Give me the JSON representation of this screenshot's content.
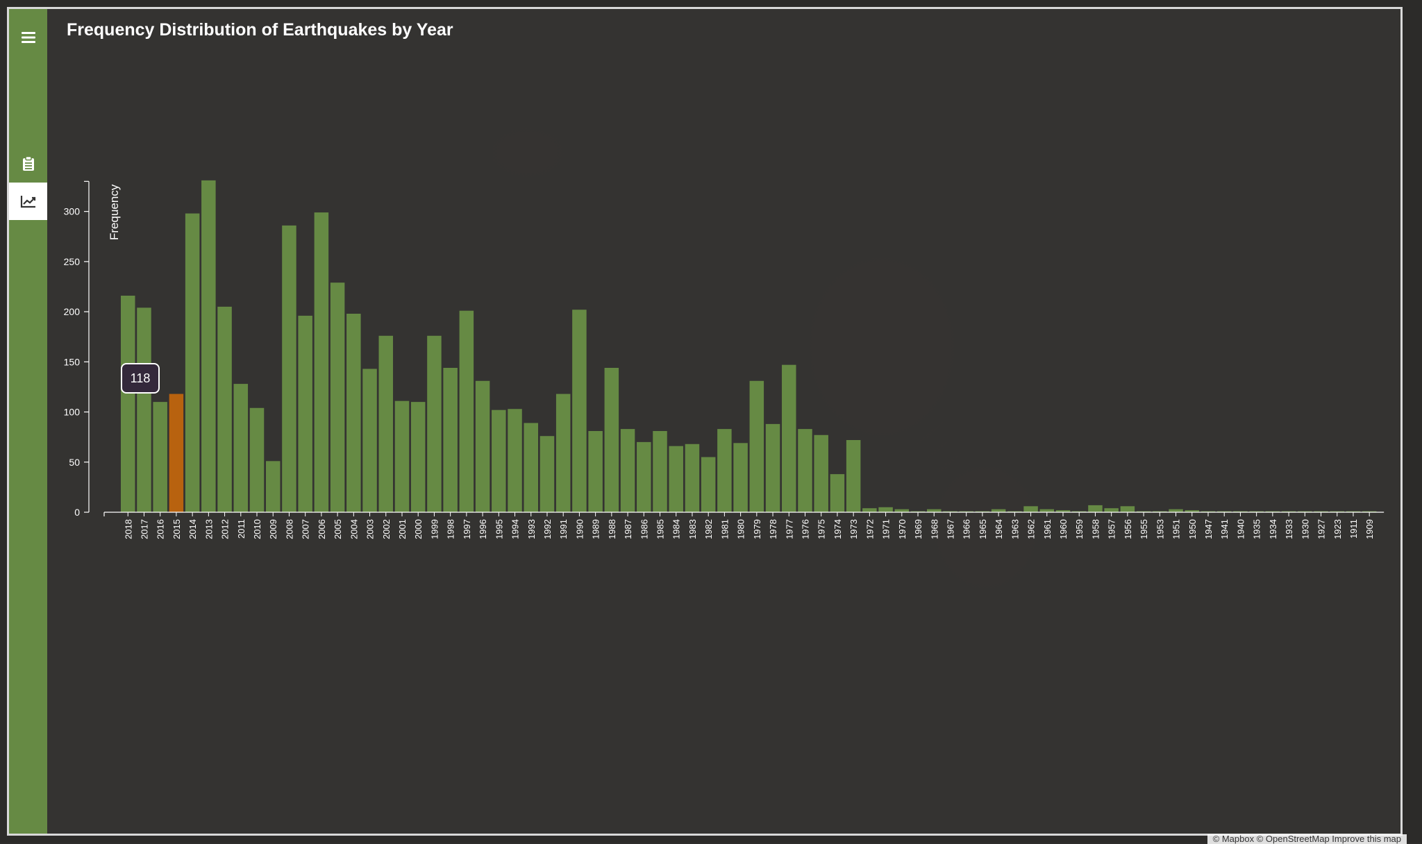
{
  "header": {
    "title": "Frequency Distribution of Earthquakes by Year"
  },
  "sidebar": {
    "items": [
      {
        "icon": "menu-icon"
      },
      {
        "icon": "clipboard-icon"
      },
      {
        "icon": "line-chart-icon",
        "active": true
      }
    ]
  },
  "tooltip": {
    "value": "118"
  },
  "map_credit": "© Mapbox © OpenStreetMap  Improve this map",
  "colors": {
    "bar": "#668a44",
    "highlight": "#b8620f",
    "sidebar": "#668a44",
    "axis": "#ffffff"
  },
  "chart_data": {
    "type": "bar",
    "title": "Frequency Distribution of Earthquakes by Year",
    "xlabel": "",
    "ylabel": "Frequency",
    "ylim": [
      0,
      330
    ],
    "yticks": [
      0,
      50,
      100,
      150,
      200,
      250,
      300
    ],
    "highlight_category": "2015",
    "categories": [
      "2018",
      "2017",
      "2016",
      "2015",
      "2014",
      "2013",
      "2012",
      "2011",
      "2010",
      "2009",
      "2008",
      "2007",
      "2006",
      "2005",
      "2004",
      "2003",
      "2002",
      "2001",
      "2000",
      "1999",
      "1998",
      "1997",
      "1996",
      "1995",
      "1994",
      "1993",
      "1992",
      "1991",
      "1990",
      "1989",
      "1988",
      "1987",
      "1986",
      "1985",
      "1984",
      "1983",
      "1982",
      "1981",
      "1980",
      "1979",
      "1978",
      "1977",
      "1976",
      "1975",
      "1974",
      "1973",
      "1972",
      "1971",
      "1970",
      "1969",
      "1968",
      "1967",
      "1966",
      "1965",
      "1964",
      "1963",
      "1962",
      "1961",
      "1960",
      "1959",
      "1958",
      "1957",
      "1956",
      "1955",
      "1953",
      "1951",
      "1950",
      "1947",
      "1941",
      "1940",
      "1935",
      "1934",
      "1933",
      "1930",
      "1927",
      "1923",
      "1911",
      "1909"
    ],
    "values": [
      216,
      204,
      110,
      118,
      298,
      331,
      205,
      128,
      104,
      51,
      286,
      196,
      299,
      229,
      198,
      143,
      176,
      111,
      110,
      176,
      144,
      201,
      131,
      102,
      103,
      89,
      76,
      118,
      202,
      81,
      144,
      83,
      70,
      81,
      66,
      68,
      55,
      83,
      69,
      131,
      88,
      147,
      83,
      77,
      38,
      72,
      4,
      5,
      3,
      1,
      3,
      1,
      1,
      1,
      3,
      1,
      6,
      3,
      2,
      1,
      7,
      4,
      6,
      1,
      1,
      3,
      2,
      1,
      1,
      1,
      1,
      1,
      1,
      1,
      1,
      1,
      1,
      1
    ]
  }
}
